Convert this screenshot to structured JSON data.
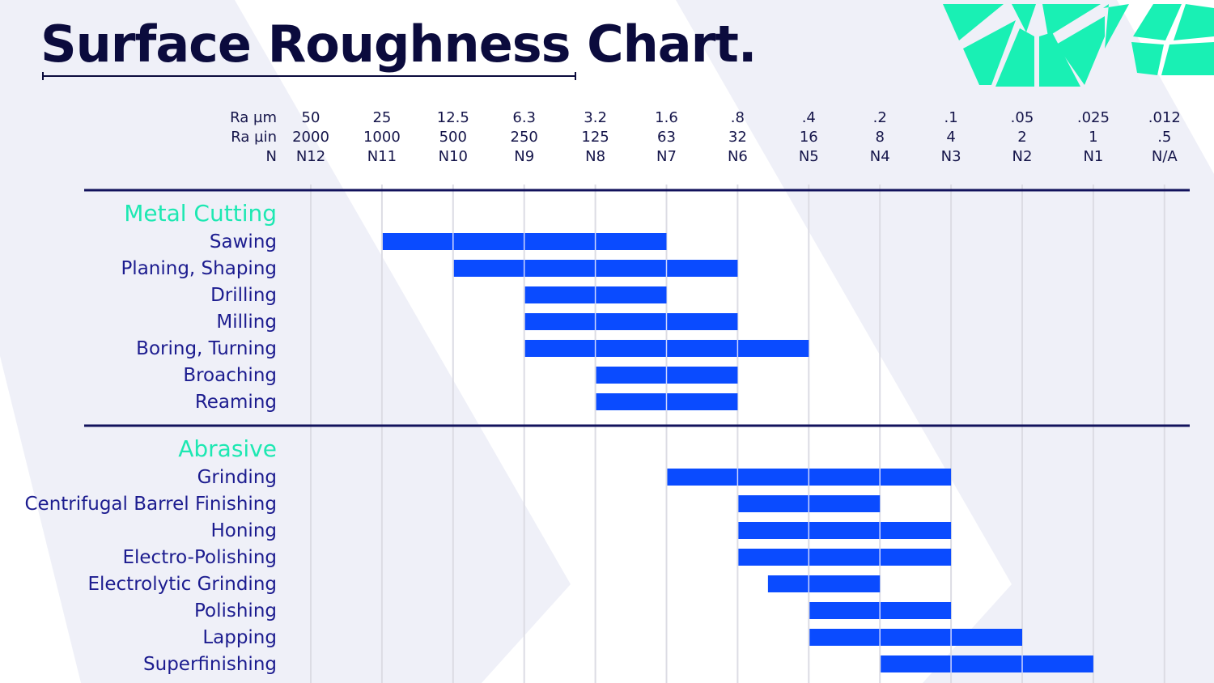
{
  "title": "Surface Roughness Chart.",
  "colors": {
    "bar": "#0a4bff",
    "group": "#1de8b2",
    "text": "#1c1c8f",
    "title": "#0b0b3d",
    "logo": "#19f0b4"
  },
  "chart_data": {
    "type": "bar",
    "orientation": "horizontal-range",
    "title": "Surface Roughness Chart.",
    "axis_rows": [
      {
        "label": "Ra µm",
        "ticks": [
          "50",
          "25",
          "12.5",
          "6.3",
          "3.2",
          "1.6",
          ".8",
          ".4",
          ".2",
          ".1",
          ".05",
          ".025",
          ".012"
        ]
      },
      {
        "label": "Ra µin",
        "ticks": [
          "2000",
          "1000",
          "500",
          "250",
          "125",
          "63",
          "32",
          "16",
          "8",
          "4",
          "2",
          "1",
          ".5"
        ]
      },
      {
        "label": "N",
        "ticks": [
          "N12",
          "N11",
          "N10",
          "N9",
          "N8",
          "N7",
          "N6",
          "N5",
          "N4",
          "N3",
          "N2",
          "N1",
          "N/A"
        ]
      }
    ],
    "tick_values_um": [
      50,
      25,
      12.5,
      6.3,
      3.2,
      1.6,
      0.8,
      0.4,
      0.2,
      0.1,
      0.05,
      0.025,
      0.012
    ],
    "grid": true,
    "groups": [
      {
        "name": "Metal Cutting",
        "processes": [
          {
            "name": "Sawing",
            "from": 25,
            "to": 1.6
          },
          {
            "name": "Planing, Shaping",
            "from": 12.5,
            "to": 0.8
          },
          {
            "name": "Drilling",
            "from": 6.3,
            "to": 1.6
          },
          {
            "name": "Milling",
            "from": 6.3,
            "to": 0.8
          },
          {
            "name": "Boring, Turning",
            "from": 6.3,
            "to": 0.4
          },
          {
            "name": "Broaching",
            "from": 3.2,
            "to": 0.8
          },
          {
            "name": "Reaming",
            "from": 3.2,
            "to": 0.8
          }
        ]
      },
      {
        "name": "Abrasive",
        "processes": [
          {
            "name": "Grinding",
            "from": 1.6,
            "to": 0.1
          },
          {
            "name": "Centrifugal Barrel Finishing",
            "from": 0.8,
            "to": 0.2
          },
          {
            "name": "Honing",
            "from": 0.8,
            "to": 0.1
          },
          {
            "name": "Electro-Polishing",
            "from": 0.8,
            "to": 0.1
          },
          {
            "name": "Electrolytic Grinding",
            "from": 0.6,
            "to": 0.2
          },
          {
            "name": "Polishing",
            "from": 0.4,
            "to": 0.1
          },
          {
            "name": "Lapping",
            "from": 0.4,
            "to": 0.05
          },
          {
            "name": "Superfinishing",
            "from": 0.2,
            "to": 0.025
          }
        ]
      }
    ]
  }
}
